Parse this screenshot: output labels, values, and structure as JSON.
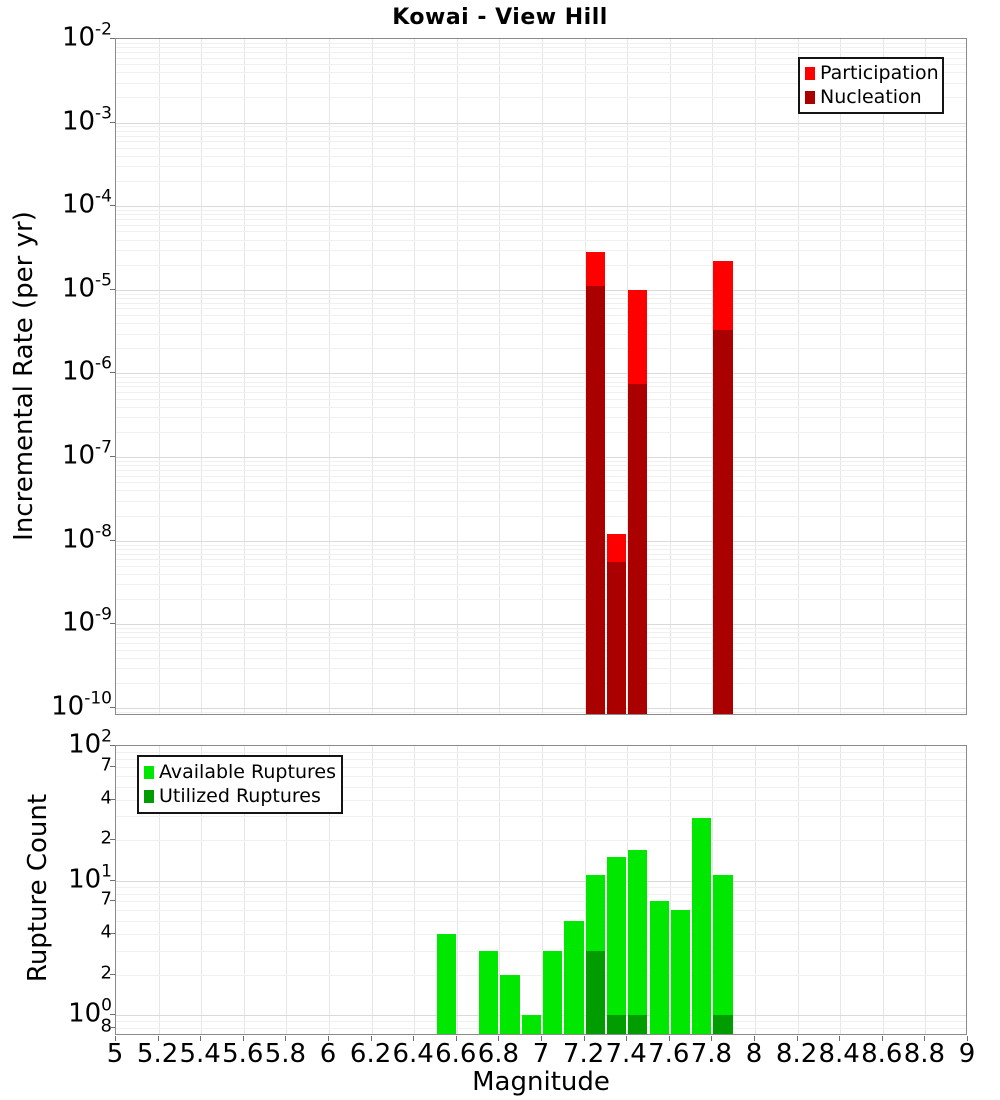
{
  "title": "Kowai - View Hill",
  "chart_data": [
    {
      "type": "bar",
      "panel": "top",
      "title": "Kowai - View Hill",
      "xlabel": "",
      "ylabel": "Incremental Rate (per yr)",
      "yscale": "log",
      "ylim": [
        8e-11,
        0.01
      ],
      "xlim": [
        5,
        9
      ],
      "bin_width": 0.1,
      "grid": "on",
      "legend_position": "top-right",
      "y_ticks": [
        {
          "label": "10",
          "sup": "-2",
          "value": 0.01
        },
        {
          "label": "10",
          "sup": "-3",
          "value": 0.001
        },
        {
          "label": "10",
          "sup": "-4",
          "value": 0.0001
        },
        {
          "label": "10",
          "sup": "-5",
          "value": 1e-05
        },
        {
          "label": "10",
          "sup": "-6",
          "value": 1e-06
        },
        {
          "label": "10",
          "sup": "-7",
          "value": 1e-07
        },
        {
          "label": "10",
          "sup": "-8",
          "value": 1e-08
        },
        {
          "label": "10",
          "sup": "-9",
          "value": 1e-09
        },
        {
          "label": "10",
          "sup": "-10",
          "value": 1e-10
        }
      ],
      "series": [
        {
          "name": "Participation",
          "color": "#FF0000",
          "bins": [
            7.2,
            7.3,
            7.4,
            7.8
          ],
          "values": [
            2.8e-05,
            1.2e-08,
            1e-05,
            2.2e-05
          ]
        },
        {
          "name": "Nucleation",
          "color": "#AA0000",
          "bins": [
            7.2,
            7.3,
            7.4,
            7.8
          ],
          "values": [
            1.1e-05,
            5.5e-09,
            7.5e-07,
            3.3e-06
          ]
        }
      ]
    },
    {
      "type": "bar",
      "panel": "bottom",
      "xlabel": "Magnitude",
      "ylabel": "Rupture Count",
      "yscale": "log",
      "ylim": [
        0.7,
        100
      ],
      "xlim": [
        5,
        9
      ],
      "bin_width": 0.1,
      "grid": "on",
      "legend_position": "top-left",
      "x_ticks": [
        "5",
        "5.2",
        "5.4",
        "5.6",
        "5.8",
        "6",
        "6.2",
        "6.4",
        "6.6",
        "6.8",
        "7",
        "7.2",
        "7.4",
        "7.6",
        "7.8",
        "8",
        "8.2",
        "8.4",
        "8.6",
        "8.8",
        "9"
      ],
      "y_ticks": [
        {
          "label": "10",
          "sup": "2",
          "value": 100
        },
        {
          "label": "7",
          "value": 70,
          "minor": true
        },
        {
          "label": "4",
          "value": 40,
          "minor": true
        },
        {
          "label": "2",
          "value": 20,
          "minor": true
        },
        {
          "label": "10",
          "sup": "1",
          "value": 10
        },
        {
          "label": "7",
          "value": 7,
          "minor": true
        },
        {
          "label": "4",
          "value": 4,
          "minor": true
        },
        {
          "label": "2",
          "value": 2,
          "minor": true
        },
        {
          "label": "10",
          "sup": "0",
          "value": 1
        },
        {
          "label": "8",
          "value": 0.8,
          "minor": true
        }
      ],
      "series": [
        {
          "name": "Available Ruptures",
          "color": "#00E800",
          "bins": [
            6.5,
            6.7,
            6.8,
            6.9,
            7.0,
            7.1,
            7.2,
            7.3,
            7.4,
            7.5,
            7.6,
            7.7,
            7.8
          ],
          "values": [
            4,
            3,
            2,
            1,
            3,
            5,
            11,
            15,
            17,
            7,
            6,
            29,
            11
          ]
        },
        {
          "name": "Utilized Ruptures",
          "color": "#009C00",
          "bins": [
            7.2,
            7.3,
            7.4,
            7.8
          ],
          "values": [
            3,
            1,
            1,
            1
          ]
        }
      ]
    }
  ]
}
